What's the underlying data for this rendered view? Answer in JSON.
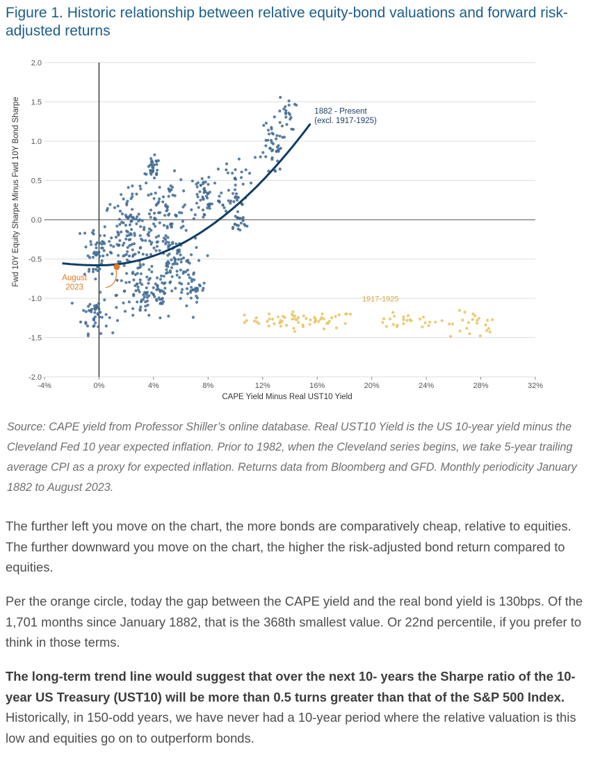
{
  "figure": {
    "title": "Figure 1. Historic relationship between relative equity-bond valuations and forward risk-adjusted returns"
  },
  "chart_data": {
    "type": "scatter",
    "title": "Figure 1. Historic relationship between relative equity-bond valuations and forward risk-adjusted returns",
    "xlabel": "CAPE Yield Minus Real UST10 Yield",
    "ylabel": "Fwd 10Y Equity Sharpe Minus Fwd 10Y Bond Sharpe",
    "xlim": [
      -4,
      32
    ],
    "ylim": [
      -2.0,
      2.0
    ],
    "x_ticks": [
      "-4%",
      "0%",
      "4%",
      "8%",
      "12%",
      "16%",
      "20%",
      "24%",
      "28%",
      "32%"
    ],
    "y_ticks": [
      "2.0",
      "1.5",
      "1.0",
      "0.5",
      "0.0",
      "-0.5",
      "-1.0",
      "-1.5",
      "-2.0"
    ],
    "colors": {
      "main": "#3f6a93",
      "excluded": "#e8c25e",
      "trend": "#0f3d66",
      "highlight": "#e07b22"
    },
    "series": [
      {
        "name": "1882 - Present (excl. 1917-1925)",
        "label_line1": "1882 - Present",
        "label_line2": "(excl. 1917-1925)",
        "trend": {
          "x_start": -2.7,
          "x_end": 15.5,
          "x_vertex": 0,
          "y_vertex": -0.58,
          "curvature": 0.0075
        },
        "clusters": [
          {
            "n": 45,
            "cx": -0.3,
            "cy": -0.4,
            "sx": 0.8,
            "sy": 0.35
          },
          {
            "n": 45,
            "cx": -0.3,
            "cy": -1.2,
            "sx": 0.8,
            "sy": 0.2
          },
          {
            "n": 130,
            "cx": 2.2,
            "cy": -0.2,
            "sx": 1.5,
            "sy": 0.45
          },
          {
            "n": 90,
            "cx": 3.5,
            "cy": -0.95,
            "sx": 1.8,
            "sy": 0.3
          },
          {
            "n": 30,
            "cx": 4.0,
            "cy": 0.65,
            "sx": 0.4,
            "sy": 0.12
          },
          {
            "n": 90,
            "cx": 5.0,
            "cy": 0.05,
            "sx": 1.5,
            "sy": 0.4
          },
          {
            "n": 70,
            "cx": 5.5,
            "cy": -0.6,
            "sx": 1.3,
            "sy": 0.3
          },
          {
            "n": 50,
            "cx": 7.8,
            "cy": 0.3,
            "sx": 1.0,
            "sy": 0.3
          },
          {
            "n": 30,
            "cx": 7.0,
            "cy": -0.9,
            "sx": 0.8,
            "sy": 0.2
          },
          {
            "n": 40,
            "cx": 10.0,
            "cy": 0.45,
            "sx": 0.8,
            "sy": 0.3
          },
          {
            "n": 20,
            "cx": 10.2,
            "cy": -0.05,
            "sx": 0.6,
            "sy": 0.12
          },
          {
            "n": 30,
            "cx": 12.6,
            "cy": 1.0,
            "sx": 0.7,
            "sy": 0.22
          },
          {
            "n": 20,
            "cx": 13.8,
            "cy": 1.35,
            "sx": 0.5,
            "sy": 0.18
          },
          {
            "n": 14,
            "cx": 12.5,
            "cy": 0.8,
            "sx": 0.9,
            "sy": 0.2
          }
        ]
      },
      {
        "name": "1917-1925",
        "label": "1917-1925",
        "clusters": [
          {
            "n": 60,
            "cx": 15.0,
            "cy": -1.28,
            "sx": 3.5,
            "sy": 0.09
          },
          {
            "n": 25,
            "cx": 22.5,
            "cy": -1.3,
            "sx": 2.5,
            "sy": 0.08
          },
          {
            "n": 22,
            "cx": 27.5,
            "cy": -1.35,
            "sx": 1.5,
            "sy": 0.15
          }
        ]
      }
    ],
    "highlight": {
      "name": "August 2023",
      "label_line1": "August",
      "label_line2": "2023",
      "x": 1.3,
      "y": -0.6
    }
  },
  "source_note": "Source: CAPE yield from Professor Shiller’s online database. Real UST10 Yield is the US 10-year yield minus the Cleveland Fed 10 year expected inflation. Prior to 1982, when the Cleveland series begins, we take 5-year trailing average CPI as a proxy for expected inflation. Returns data from Bloomberg and GFD. Monthly periodicity January 1882 to August 2023.",
  "body": {
    "paragraph1": "The further left you move on the chart, the more bonds are comparatively cheap, relative to equities. The further downward you move on the chart, the higher the risk-adjusted bond return compared to equities.",
    "paragraph2": "Per the orange circle, today the gap between the CAPE yield and the real bond yield is 130bps. Of the 1,701 months since January 1882, that is the 368th smallest value. Or 22nd percentile, if you prefer to think in those terms.",
    "paragraph3_bold": "The long-term trend line would suggest that over the next 10- years the Sharpe ratio of the 10-year US Treasury (UST10) will be more than 0.5 turns greater than that of the S&P 500 Index.",
    "paragraph3_rest": " Historically, in 150-odd years, we have never had a 10-year period where the relative valuation is this low and equities go on to outperform bonds."
  }
}
